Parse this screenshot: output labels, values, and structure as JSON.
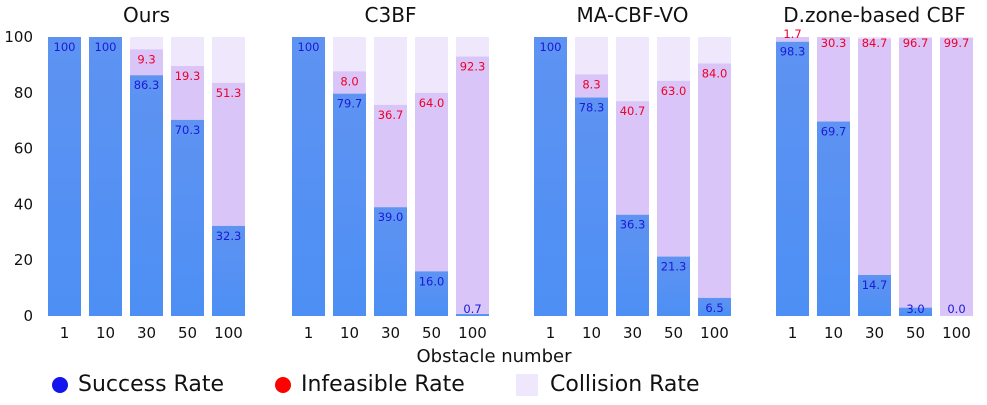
{
  "chart_data": {
    "type": "bar",
    "stacked": true,
    "xlabel": "Obstacle number",
    "ylabel": "",
    "ylim": [
      0,
      100
    ],
    "yticks": [
      0,
      20,
      40,
      60,
      80,
      100
    ],
    "grid": false,
    "legend_position": "bottom",
    "groups": [
      {
        "title": "Ours",
        "categories": [
          "1",
          "10",
          "30",
          "50",
          "100"
        ],
        "success": [
          100,
          100,
          86.3,
          70.3,
          32.3
        ],
        "infeasible": [
          0,
          0,
          9.3,
          19.3,
          51.3
        ],
        "collision": [
          0,
          0,
          4.4,
          10.4,
          16.4
        ],
        "success_labels": [
          "100",
          "100",
          "86.3",
          "70.3",
          "32.3"
        ],
        "infeasible_labels": [
          "",
          "",
          "9.3",
          "19.3",
          "51.3"
        ]
      },
      {
        "title": "C3BF",
        "categories": [
          "1",
          "10",
          "30",
          "50",
          "100"
        ],
        "success": [
          100,
          79.7,
          39.0,
          16.0,
          0.7
        ],
        "infeasible": [
          0,
          8.0,
          36.7,
          64.0,
          92.3
        ],
        "collision": [
          0,
          12.3,
          24.3,
          20.0,
          7.0
        ],
        "success_labels": [
          "100",
          "79.7",
          "39.0",
          "16.0",
          "0.7"
        ],
        "infeasible_labels": [
          "",
          "8.0",
          "36.7",
          "64.0",
          "92.3"
        ]
      },
      {
        "title": "MA-CBF-VO",
        "categories": [
          "1",
          "10",
          "30",
          "50",
          "100"
        ],
        "success": [
          100,
          78.3,
          36.3,
          21.3,
          6.5
        ],
        "infeasible": [
          0,
          8.3,
          40.7,
          63.0,
          84.0
        ],
        "collision": [
          0,
          13.4,
          23.0,
          15.7,
          9.5
        ],
        "success_labels": [
          "100",
          "78.3",
          "36.3",
          "21.3",
          "6.5"
        ],
        "infeasible_labels": [
          "",
          "8.3",
          "40.7",
          "63.0",
          "84.0"
        ]
      },
      {
        "title": "D.zone-based CBF",
        "categories": [
          "1",
          "10",
          "30",
          "50",
          "100"
        ],
        "success": [
          98.3,
          69.7,
          14.7,
          3.0,
          0.0
        ],
        "infeasible": [
          1.7,
          30.3,
          84.7,
          96.7,
          99.7
        ],
        "collision": [
          0,
          0,
          0.6,
          0.3,
          0.3
        ],
        "success_labels": [
          "98.3",
          "69.7",
          "14.7",
          "3.0",
          "0.0"
        ],
        "infeasible_labels": [
          "1.7",
          "30.3",
          "84.7",
          "96.7",
          "99.7"
        ]
      }
    ],
    "series": [
      {
        "name": "Success Rate",
        "color": "#5b93f0",
        "marker": "#1414ee"
      },
      {
        "name": "Infeasible Rate",
        "color": "#d9c5f8",
        "marker": "#ff0000"
      },
      {
        "name": "Collision Rate",
        "color": "#efe8fd",
        "marker": "#efe8fd"
      }
    ],
    "label_colors": {
      "success": "#1a1ad8",
      "infeasible": "#f0002a"
    }
  }
}
